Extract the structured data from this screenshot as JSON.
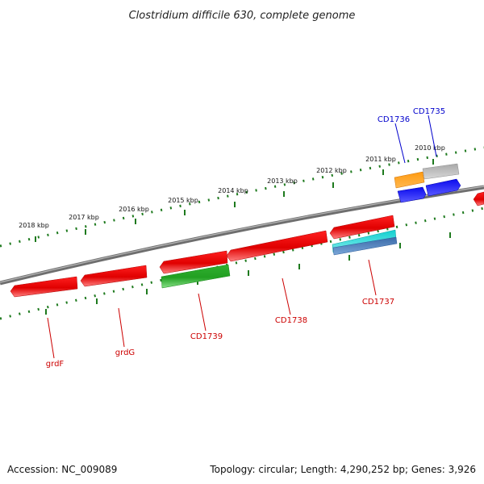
{
  "title": "Clostridium difficile 630, complete genome",
  "footer": {
    "accession": "Accession: NC_009089",
    "summary": "Topology: circular; Length: 4,290,252 bp; Genes: 3,926"
  },
  "colors": {
    "backbone": "#808080",
    "tick": "#1e7a1e",
    "gene_label_forward": "#0000cc",
    "gene_label_reverse": "#cc0000"
  },
  "scale_labels": [
    "2018 kbp",
    "2017 kbp",
    "2016 kbp",
    "2015 kbp",
    "2014 kbp",
    "2013 kbp",
    "2012 kbp",
    "2011 kbp",
    "2010 kbp"
  ],
  "gene_labels": {
    "forward": [
      "CD1736",
      "CD1735"
    ],
    "reverse": [
      "grdF",
      "grdG",
      "CD1739",
      "CD1738",
      "CD1737"
    ]
  },
  "feature_colors": [
    "red",
    "green",
    "cyan",
    "steelblue",
    "orange",
    "gray",
    "blue"
  ]
}
